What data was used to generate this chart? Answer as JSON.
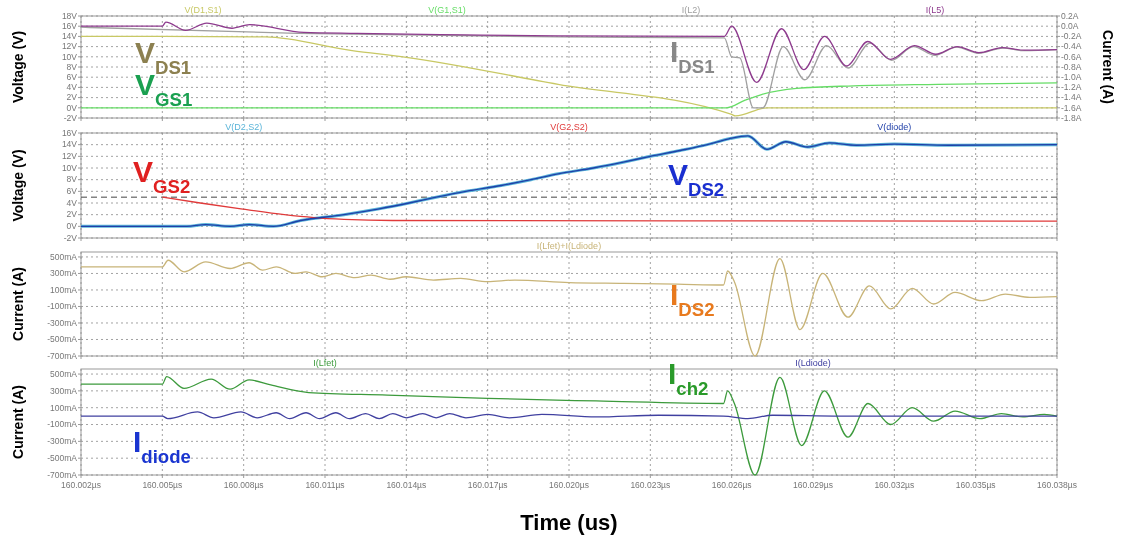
{
  "chart_data": [
    {
      "type": "line",
      "ylabel": "Voltage (V)",
      "y2label": "Current (A)",
      "xlim": [
        160.002,
        160.038
      ],
      "xticks": [
        {
          "value": 160.002,
          "label": null
        },
        {
          "value": 160.005,
          "label": null
        },
        {
          "value": 160.008,
          "label": null
        },
        {
          "value": 160.011,
          "label": null
        },
        {
          "value": 160.014,
          "label": null
        },
        {
          "value": 160.017,
          "label": null
        },
        {
          "value": 160.02,
          "label": null
        },
        {
          "value": 160.023,
          "label": null
        },
        {
          "value": 160.026,
          "label": null
        },
        {
          "value": 160.029,
          "label": null
        },
        {
          "value": 160.032,
          "label": null
        },
        {
          "value": 160.035,
          "label": null
        },
        {
          "value": 160.038,
          "label": null
        }
      ],
      "ylim": [
        -2,
        18
      ],
      "yticks": [
        {
          "value": -2,
          "label": "-2V"
        },
        {
          "value": 0,
          "label": "0V"
        },
        {
          "value": 2,
          "label": "2V"
        },
        {
          "value": 4,
          "label": "4V"
        },
        {
          "value": 6,
          "label": "6V"
        },
        {
          "value": 8,
          "label": "8V"
        },
        {
          "value": 10,
          "label": "10V"
        },
        {
          "value": 12,
          "label": "12V"
        },
        {
          "value": 14,
          "label": "14V"
        },
        {
          "value": 16,
          "label": "16V"
        },
        {
          "value": 18,
          "label": "18V"
        }
      ],
      "y2lim": [
        -1.8,
        0.2
      ],
      "y2ticks": [
        {
          "value": -1.8,
          "label": "-1.8A"
        },
        {
          "value": -1.6,
          "label": "-1.6A"
        },
        {
          "value": -1.4,
          "label": "-1.4A"
        },
        {
          "value": -1.2,
          "label": "-1.2A"
        },
        {
          "value": -1.0,
          "label": "-1.0A"
        },
        {
          "value": -0.8,
          "label": "-0.8A"
        },
        {
          "value": -0.6,
          "label": "-0.6A"
        },
        {
          "value": -0.4,
          "label": "-0.4A"
        },
        {
          "value": -0.2,
          "label": "-0.2A"
        },
        {
          "value": 0,
          "label": "0.0A"
        },
        {
          "value": 0.2,
          "label": "0.2A"
        }
      ],
      "tick_labels": "y",
      "grid": true,
      "legend": "top",
      "series": [
        {
          "name": "V(D1,S1)",
          "color": "#c8c864",
          "x": [
            160.002,
            160.005,
            160.0088,
            160.012,
            160.014,
            160.0196,
            160.026,
            160.02614,
            160.0273,
            160.038
          ],
          "values": [
            14,
            14,
            13.9,
            11.2,
            9.9,
            4.6,
            -1.3,
            -1.6,
            0,
            0
          ]
        },
        {
          "name": "V(G1,S1)",
          "color": "#66dd66",
          "x": [
            160.002,
            160.0258,
            160.0265,
            160.0271,
            160.0284,
            160.0305,
            160.0336,
            160.038
          ],
          "values": [
            0,
            0,
            1.5,
            2.6,
            3.8,
            4.3,
            4.6,
            4.9
          ]
        },
        {
          "name": "I(L2)",
          "color": "#a0a0a0",
          "axis": "y2",
          "x": [
            160.002,
            160.01,
            160.01957,
            160.02573,
            160.026,
            160.0263,
            160.0268,
            160.02715,
            160.0279,
            160.0287,
            160.0295,
            160.0303,
            160.0311,
            160.0319,
            160.0327,
            160.0335,
            160.0343,
            160.0351,
            160.036,
            160.0368,
            160.038
          ],
          "values": [
            -0.02,
            -0.14,
            -0.21,
            -0.23,
            -0.6,
            -0.62,
            -1.6,
            -1.6,
            -0.4,
            -1.05,
            -0.38,
            -0.82,
            -0.33,
            -0.67,
            -0.4,
            -0.57,
            -0.41,
            -0.53,
            -0.43,
            -0.48,
            -0.46
          ]
        },
        {
          "name": "I(L5)",
          "color": "#8e3b8e",
          "axis": "y2",
          "x": [
            160.002,
            160.005,
            160.00513,
            160.00586,
            160.00664,
            160.00757,
            160.00822,
            160.01022,
            160.01218,
            160.01614,
            160.01957,
            160.02573,
            160.026,
            160.02692,
            160.02784,
            160.02866,
            160.02943,
            160.03024,
            160.03102,
            160.03186,
            160.03274,
            160.03353,
            160.03432,
            160.03512,
            160.03597,
            160.0368,
            160.038
          ],
          "values": [
            0,
            0,
            0.08,
            -0.08,
            0.06,
            -0.04,
            0.03,
            -0.12,
            -0.14,
            -0.17,
            -0.19,
            -0.2,
            0,
            -1.1,
            -0.05,
            -0.85,
            -0.2,
            -0.78,
            -0.3,
            -0.65,
            -0.38,
            -0.55,
            -0.4,
            -0.52,
            -0.42,
            -0.47,
            -0.46
          ]
        }
      ],
      "annotations": [
        "V$_{DS1}$",
        "V$_{GS1}$",
        "I$_{DS1}$"
      ]
    },
    {
      "type": "line",
      "ylabel": "Voltage (V)",
      "xlim": [
        160.002,
        160.038
      ],
      "xticks": [
        {
          "value": 160.002,
          "label": null
        },
        {
          "value": 160.005,
          "label": null
        },
        {
          "value": 160.008,
          "label": null
        },
        {
          "value": 160.011,
          "label": null
        },
        {
          "value": 160.014,
          "label": null
        },
        {
          "value": 160.017,
          "label": null
        },
        {
          "value": 160.02,
          "label": null
        },
        {
          "value": 160.023,
          "label": null
        },
        {
          "value": 160.026,
          "label": null
        },
        {
          "value": 160.029,
          "label": null
        },
        {
          "value": 160.032,
          "label": null
        },
        {
          "value": 160.035,
          "label": null
        },
        {
          "value": 160.038,
          "label": null
        }
      ],
      "ylim": [
        -2,
        16
      ],
      "yticks": [
        {
          "value": -2,
          "label": "-2V"
        },
        {
          "value": 0,
          "label": "0V"
        },
        {
          "value": 2,
          "label": "2V"
        },
        {
          "value": 4,
          "label": "4V"
        },
        {
          "value": 6,
          "label": "6V"
        },
        {
          "value": 8,
          "label": "8V"
        },
        {
          "value": 10,
          "label": "10V"
        },
        {
          "value": 12,
          "label": "12V"
        },
        {
          "value": 14,
          "label": "14V"
        },
        {
          "value": 16,
          "label": "16V"
        }
      ],
      "tick_labels": "y",
      "grid": true,
      "legend": "top",
      "series": [
        {
          "name": "V(D2,S2)",
          "color": "#5ab4d8",
          "x": [
            160.002,
            160.0059,
            160.0066,
            160.0075,
            160.0082,
            160.0091,
            160.0101,
            160.0117,
            160.013,
            160.0141,
            160.0151,
            160.0162,
            160.0175,
            160.0186,
            160.0196,
            160.0209,
            160.022,
            160.023,
            160.0241,
            160.0251,
            160.0259,
            160.0266,
            160.0273,
            160.028,
            160.0288,
            160.0296,
            160.0306,
            160.032,
            160.034,
            160.038
          ],
          "values": [
            0,
            0,
            0.3,
            0,
            0.3,
            0,
            1,
            2,
            3,
            4,
            5,
            6,
            7,
            8,
            9,
            10,
            11,
            12,
            13,
            14,
            15,
            15.5,
            13.2,
            14.5,
            13.6,
            14.3,
            13.9,
            14.1,
            13.9,
            14
          ]
        },
        {
          "name": "V(G2,S2)",
          "color": "#e03a3a",
          "x": [
            160.005,
            160.0064,
            160.0079,
            160.0095,
            160.0106,
            160.0117,
            160.0135,
            160.038
          ],
          "values": [
            5,
            4,
            3,
            2,
            1.5,
            1.2,
            1,
            0.9
          ]
        },
        {
          "name": "V(diode)",
          "color": "#1f3fa8",
          "x": [
            160.002,
            160.0059,
            160.0066,
            160.0075,
            160.0082,
            160.0091,
            160.0101,
            160.0117,
            160.013,
            160.0141,
            160.0151,
            160.0162,
            160.0175,
            160.0186,
            160.0196,
            160.0209,
            160.022,
            160.023,
            160.0241,
            160.0251,
            160.0259,
            160.0266,
            160.0273,
            160.028,
            160.0288,
            160.0296,
            160.0306,
            160.032,
            160.034,
            160.038
          ],
          "values": [
            0,
            0,
            0.3,
            0,
            0.3,
            0,
            1,
            2,
            3,
            4,
            5,
            6,
            7,
            8,
            9,
            10,
            11,
            12,
            13,
            14,
            15,
            15.5,
            13.2,
            14.5,
            13.6,
            14.3,
            13.9,
            14.1,
            13.9,
            14
          ]
        }
      ],
      "ref_lines": [
        {
          "axis": "y",
          "value": 5,
          "color": "#444444",
          "line_style": "dashed"
        }
      ],
      "annotations": [
        "V$_{GS2}$",
        "V$_{DS2}$"
      ]
    },
    {
      "type": "line",
      "ylabel": "Current (A)",
      "xlim": [
        160.002,
        160.038
      ],
      "xticks": [
        {
          "value": 160.002,
          "label": null
        },
        {
          "value": 160.005,
          "label": null
        },
        {
          "value": 160.008,
          "label": null
        },
        {
          "value": 160.011,
          "label": null
        },
        {
          "value": 160.014,
          "label": null
        },
        {
          "value": 160.017,
          "label": null
        },
        {
          "value": 160.02,
          "label": null
        },
        {
          "value": 160.023,
          "label": null
        },
        {
          "value": 160.026,
          "label": null
        },
        {
          "value": 160.029,
          "label": null
        },
        {
          "value": 160.032,
          "label": null
        },
        {
          "value": 160.035,
          "label": null
        },
        {
          "value": 160.038,
          "label": null
        }
      ],
      "ylim": [
        -700,
        560
      ],
      "yticks": [
        {
          "value": -700,
          "label": "-700mA"
        },
        {
          "value": -500,
          "label": "-500mA"
        },
        {
          "value": -300,
          "label": "-300mA"
        },
        {
          "value": -100,
          "label": "-100mA"
        },
        {
          "value": 100,
          "label": "100mA"
        },
        {
          "value": 300,
          "label": "300mA"
        },
        {
          "value": 500,
          "label": "500mA"
        }
      ],
      "tick_labels": "y",
      "grid": true,
      "legend": "top",
      "series": [
        {
          "name": "I(Lfet)+I(Ldiode)",
          "color": "#c8b478",
          "x": [
            160.002,
            160.005,
            160.00521,
            160.0058,
            160.0066,
            160.0075,
            160.0082,
            160.0087,
            160.0092,
            160.0099,
            160.0103,
            160.0109,
            160.0114,
            160.0121,
            160.0127,
            160.0134,
            160.014,
            160.015,
            160.016,
            160.017,
            160.018,
            160.02,
            160.022,
            160.024,
            160.0257,
            160.02585,
            160.0261,
            160.02686,
            160.02778,
            160.02852,
            160.02936,
            160.03029,
            160.03108,
            160.03187,
            160.03266,
            160.03345,
            160.03424,
            160.03522,
            160.0361,
            160.037,
            160.038
          ],
          "values": [
            380,
            380,
            460,
            320,
            440,
            360,
            430,
            340,
            380,
            300,
            320,
            260,
            300,
            250,
            280,
            230,
            260,
            220,
            240,
            200,
            220,
            190,
            180,
            170,
            160,
            330,
            200,
            -700,
            480,
            -380,
            300,
            -230,
            150,
            -130,
            120,
            -70,
            70,
            -30,
            50,
            10,
            20
          ]
        }
      ],
      "annotations": [
        "I$_{DS2}$"
      ]
    },
    {
      "type": "line",
      "ylabel": "Current (A)",
      "xlabel": "Time (us)",
      "xlim": [
        160.002,
        160.038
      ],
      "xticks": [
        {
          "value": 160.002,
          "label": "160.002µs"
        },
        {
          "value": 160.005,
          "label": "160.005µs"
        },
        {
          "value": 160.008,
          "label": "160.008µs"
        },
        {
          "value": 160.011,
          "label": "160.011µs"
        },
        {
          "value": 160.014,
          "label": "160.014µs"
        },
        {
          "value": 160.017,
          "label": "160.017µs"
        },
        {
          "value": 160.02,
          "label": "160.020µs"
        },
        {
          "value": 160.023,
          "label": "160.023µs"
        },
        {
          "value": 160.026,
          "label": "160.026µs"
        },
        {
          "value": 160.029,
          "label": "160.029µs"
        },
        {
          "value": 160.032,
          "label": "160.032µs"
        },
        {
          "value": 160.035,
          "label": "160.035µs"
        },
        {
          "value": 160.038,
          "label": "160.038µs"
        }
      ],
      "ylim": [
        -700,
        560
      ],
      "yticks": [
        {
          "value": -700,
          "label": "-700mA"
        },
        {
          "value": -500,
          "label": "-500mA"
        },
        {
          "value": -300,
          "label": "-300mA"
        },
        {
          "value": -100,
          "label": "-100mA"
        },
        {
          "value": 100,
          "label": "100mA"
        },
        {
          "value": 300,
          "label": "300mA"
        },
        {
          "value": 500,
          "label": "500mA"
        }
      ],
      "grid": true,
      "legend": "top",
      "series": [
        {
          "name": "I(Lfet)",
          "color": "#3c9a3c",
          "x": [
            160.002,
            160.005,
            160.00516,
            160.0058,
            160.0068,
            160.0075,
            160.0082,
            160.009,
            160.0104,
            160.0133,
            160.017,
            160.021,
            160.0257,
            160.02585,
            160.0261,
            160.02686,
            160.02778,
            160.02858,
            160.02942,
            160.03029,
            160.03103,
            160.03187,
            160.03266,
            160.03345,
            160.03424,
            160.03516,
            160.03595,
            160.03674,
            160.03753,
            160.038
          ],
          "values": [
            380,
            380,
            470,
            330,
            440,
            320,
            430,
            370,
            280,
            250,
            210,
            180,
            150,
            300,
            150,
            -700,
            460,
            -350,
            300,
            -250,
            150,
            -100,
            100,
            -60,
            60,
            -30,
            30,
            -10,
            20,
            0
          ]
        },
        {
          "name": "I(Ldiode)",
          "color": "#4040a0",
          "x": [
            160.002,
            160.005,
            160.0052,
            160.0063,
            160.0069,
            160.0079,
            160.0085,
            160.0092,
            160.0097,
            160.0103,
            160.0108,
            160.0114,
            160.0119,
            160.0125,
            160.013,
            160.0135,
            160.014,
            160.0146,
            160.0151,
            160.0156,
            160.0162,
            160.017,
            160.0178,
            160.019,
            160.021,
            160.0233,
            160.0257,
            160.0266,
            160.0275,
            160.03,
            160.038
          ],
          "values": [
            0,
            0,
            -30,
            50,
            -20,
            50,
            -20,
            40,
            -30,
            40,
            -30,
            40,
            -30,
            30,
            -30,
            30,
            -20,
            30,
            -20,
            30,
            -20,
            20,
            -20,
            20,
            -10,
            10,
            0,
            -30,
            10,
            0,
            0
          ]
        }
      ],
      "annotations": [
        "I$_{ch2}$",
        "I$_{diode}$"
      ]
    }
  ]
}
